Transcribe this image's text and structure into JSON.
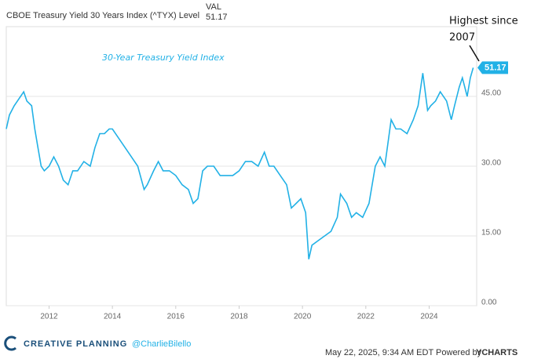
{
  "chart_data": {
    "type": "line",
    "title": "30-Year Treasury Yield Index",
    "legend_header": "VAL",
    "annotation": [
      "Highest since",
      "2007"
    ],
    "x": [
      2010.65,
      2010.75,
      2010.9,
      2011.1,
      2011.2,
      2011.3,
      2011.45,
      2011.55,
      2011.65,
      2011.75,
      2011.85,
      2012.0,
      2012.15,
      2012.3,
      2012.45,
      2012.6,
      2012.75,
      2012.9,
      2013.1,
      2013.3,
      2013.45,
      2013.6,
      2013.75,
      2013.9,
      2014.0,
      2014.2,
      2014.4,
      2014.6,
      2014.8,
      2015.0,
      2015.1,
      2015.3,
      2015.45,
      2015.6,
      2015.8,
      2016.0,
      2016.2,
      2016.4,
      2016.55,
      2016.7,
      2016.85,
      2017.0,
      2017.2,
      2017.4,
      2017.6,
      2017.8,
      2018.0,
      2018.2,
      2018.4,
      2018.6,
      2018.8,
      2018.95,
      2019.1,
      2019.3,
      2019.5,
      2019.65,
      2019.8,
      2019.95,
      2020.1,
      2020.2,
      2020.3,
      2020.5,
      2020.7,
      2020.9,
      2021.1,
      2021.2,
      2021.4,
      2021.55,
      2021.7,
      2021.9,
      2022.1,
      2022.3,
      2022.45,
      2022.6,
      2022.8,
      2022.95,
      2023.1,
      2023.3,
      2023.5,
      2023.65,
      2023.8,
      2023.95,
      2024.05,
      2024.2,
      2024.35,
      2024.55,
      2024.7,
      2024.8,
      2024.95,
      2025.05,
      2025.2,
      2025.3,
      2025.39
    ],
    "series": [
      {
        "name": "CBOE Treasury Yield 30 Years Index (^TYX) Level",
        "color": "#22b1e6",
        "values": [
          38,
          41,
          43,
          45,
          46,
          44,
          43,
          38,
          34,
          30,
          29,
          30,
          32,
          30,
          27,
          26,
          29,
          29,
          31,
          30,
          34,
          37,
          37,
          38,
          38,
          36,
          34,
          32,
          30,
          25,
          26,
          29,
          31,
          29,
          29,
          28,
          26,
          25,
          22,
          23,
          29,
          30,
          30,
          28,
          28,
          28,
          29,
          31,
          31,
          30,
          33,
          30,
          30,
          28,
          26,
          21,
          22,
          23,
          20,
          10,
          13,
          14,
          15,
          16,
          19,
          24,
          22,
          19,
          20,
          19,
          22,
          30,
          32,
          30,
          40,
          38,
          38,
          37,
          40,
          43,
          50,
          42,
          43,
          44,
          46,
          44,
          40,
          43,
          47,
          49,
          45,
          49,
          51.17
        ]
      }
    ],
    "xlim": [
      2010.65,
      2025.5
    ],
    "ylim": [
      0,
      60
    ],
    "xticks": [
      2012,
      2014,
      2016,
      2018,
      2020,
      2022,
      2024
    ],
    "yticks": [
      {
        "value": 0,
        "label": "0.00"
      },
      {
        "value": 15,
        "label": "15.00"
      },
      {
        "value": 30,
        "label": "30.00"
      },
      {
        "value": 45,
        "label": "45.00"
      }
    ],
    "grid": true,
    "footer": {
      "brand": "CREATIVE PLANNING",
      "handle": "@CharlieBilello",
      "timestamp": "May 22, 2025, 9:34 AM EDT Powered by",
      "source": "YCHARTS"
    }
  }
}
